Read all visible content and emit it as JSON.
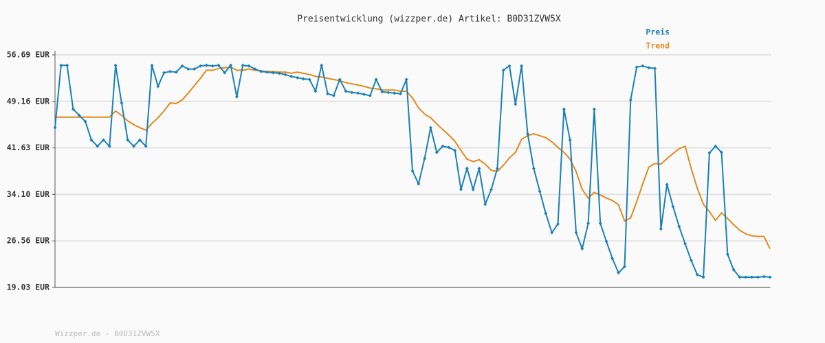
{
  "chart_data": {
    "type": "line",
    "title": "Preisentwicklung (wizzper.de) Artikel: B0D31ZVW5X",
    "footer": "Wizzper.de - B0D31ZVW5X",
    "legend": "top-right",
    "grid": true,
    "ylim": [
      19.03,
      56.69
    ],
    "yticks": [
      {
        "value": 19.03,
        "label": "19.03 EUR"
      },
      {
        "value": 26.56,
        "label": "26.56 EUR"
      },
      {
        "value": 34.1,
        "label": "34.10 EUR"
      },
      {
        "value": 41.63,
        "label": "41.63 EUR"
      },
      {
        "value": 49.16,
        "label": "49.16 EUR"
      },
      {
        "value": 56.69,
        "label": "56.69 EUR"
      }
    ],
    "categories": [
      null,
      null,
      null,
      null,
      null,
      null,
      null,
      null,
      null,
      null,
      null,
      null,
      null,
      null,
      null,
      null,
      null,
      null,
      null,
      null,
      null,
      null,
      null,
      null,
      null,
      null,
      null,
      null,
      null,
      null,
      null,
      null,
      null,
      null,
      null,
      null,
      null,
      null,
      null,
      null,
      null,
      null,
      null,
      null,
      null,
      null,
      null,
      null,
      null,
      null,
      null,
      null,
      null,
      null,
      null,
      null,
      null,
      null,
      null,
      null,
      null,
      null,
      null,
      null,
      null,
      null,
      null,
      null,
      null,
      null,
      null,
      null,
      null,
      null,
      null,
      null,
      null,
      null,
      null,
      null,
      null,
      null,
      null,
      null,
      null,
      null,
      null,
      null,
      null,
      null,
      null,
      null,
      null,
      null,
      null,
      null,
      null,
      null,
      null,
      null,
      null,
      null,
      null,
      null,
      null,
      null,
      null,
      null,
      null,
      null,
      null,
      null,
      null,
      null,
      null,
      null,
      null,
      null,
      null
    ],
    "series": [
      {
        "name": "Preis",
        "color": "#1a80b6",
        "markers": true,
        "values": [
          44.9,
          55.0,
          55.0,
          47.9,
          46.9,
          45.9,
          42.9,
          41.9,
          42.9,
          41.9,
          55.0,
          48.9,
          42.9,
          41.9,
          42.9,
          41.9,
          55.0,
          51.6,
          53.8,
          54.0,
          53.9,
          54.9,
          54.4,
          54.4,
          54.9,
          55.0,
          54.9,
          55.0,
          53.8,
          55.0,
          49.9,
          55.0,
          54.9,
          54.4,
          54.0,
          53.9,
          53.8,
          53.7,
          53.5,
          53.2,
          53.0,
          52.8,
          52.7,
          50.8,
          55.0,
          50.4,
          50.1,
          52.7,
          50.8,
          50.6,
          50.5,
          50.3,
          50.1,
          52.7,
          50.7,
          50.6,
          50.5,
          50.4,
          52.7,
          37.9,
          35.8,
          39.9,
          44.9,
          40.9,
          41.9,
          41.7,
          41.2,
          34.9,
          38.3,
          34.9,
          38.3,
          32.5,
          34.9,
          38.3,
          54.2,
          54.9,
          48.7,
          54.9,
          43.9,
          38.3,
          34.6,
          31.0,
          27.9,
          29.3,
          47.9,
          42.9,
          27.9,
          25.3,
          29.4,
          47.9,
          29.4,
          26.5,
          23.7,
          21.4,
          22.4,
          49.4,
          54.7,
          54.9,
          54.6,
          54.5,
          28.5,
          35.7,
          32.1,
          28.9,
          26.1,
          23.4,
          21.1,
          20.7,
          40.8,
          41.9,
          40.9,
          24.4,
          21.9,
          20.7,
          20.7,
          20.7,
          20.7,
          20.8,
          20.7
        ]
      },
      {
        "name": "Trend",
        "color": "#e08a1e",
        "markers": false,
        "values": [
          46.6,
          46.6,
          46.6,
          46.6,
          46.6,
          46.6,
          46.6,
          46.6,
          46.6,
          46.6,
          47.6,
          46.9,
          46.0,
          45.4,
          44.9,
          44.5,
          45.6,
          46.5,
          47.6,
          48.9,
          48.8,
          49.4,
          50.5,
          51.7,
          52.9,
          54.2,
          54.2,
          54.5,
          54.6,
          54.7,
          54.2,
          54.2,
          54.4,
          54.2,
          54.1,
          54.0,
          54.0,
          53.9,
          53.9,
          53.7,
          53.9,
          53.7,
          53.5,
          53.2,
          53.1,
          52.9,
          52.7,
          52.5,
          52.2,
          52.0,
          51.8,
          51.6,
          51.3,
          51.2,
          51.0,
          51.0,
          51.0,
          50.8,
          50.8,
          49.7,
          48.1,
          47.1,
          46.5,
          45.5,
          44.6,
          43.7,
          42.7,
          41.2,
          39.8,
          39.4,
          39.7,
          39.0,
          38.0,
          37.8,
          38.8,
          40.0,
          40.9,
          43.0,
          43.6,
          43.9,
          43.6,
          43.3,
          42.6,
          41.7,
          40.9,
          39.8,
          37.8,
          34.9,
          33.5,
          34.4,
          34.0,
          33.5,
          33.1,
          32.4,
          29.8,
          30.3,
          32.9,
          35.8,
          38.5,
          39.1,
          39.0,
          39.9,
          40.7,
          41.5,
          41.9,
          38.3,
          35.1,
          32.5,
          31.3,
          29.9,
          31.1,
          30.2,
          29.2,
          28.3,
          27.7,
          27.4,
          27.3,
          27.3,
          25.3
        ]
      }
    ]
  }
}
